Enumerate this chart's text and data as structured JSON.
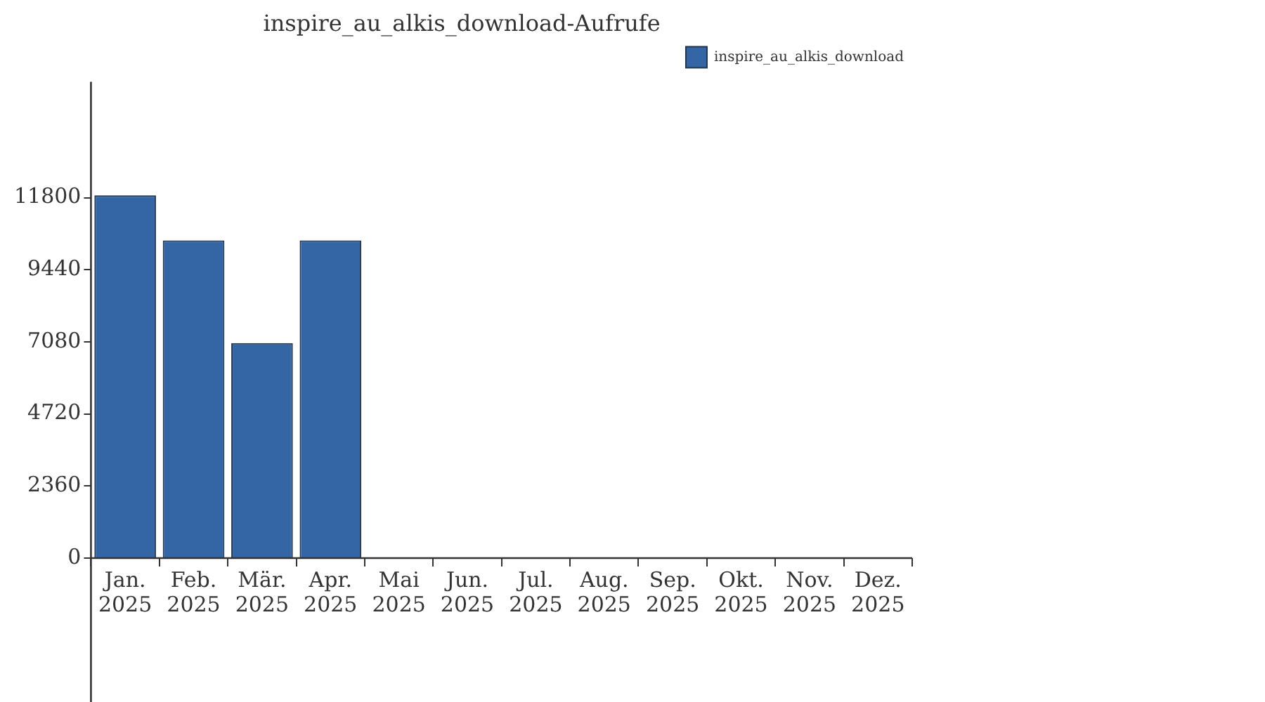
{
  "chart_data": {
    "type": "bar",
    "title": "inspire_au_alkis_download-Aufrufe",
    "categories": [
      "Jan.\n2025",
      "Feb.\n2025",
      "Mär.\n2025",
      "Apr.\n2025",
      "Mai\n2025",
      "Jun.\n2025",
      "Jul.\n2025",
      "Aug.\n2025",
      "Sep.\n2025",
      "Okt.\n2025",
      "Nov.\n2025",
      "Dez.\n2025"
    ],
    "series": [
      {
        "name": "inspire_au_alkis_download",
        "color": "#3465a4",
        "values": [
          11880,
          10400,
          7040,
          10400,
          0,
          0,
          0,
          0,
          0,
          0,
          0,
          0
        ]
      }
    ],
    "ylim": [
      0,
      15600
    ],
    "yticks": [
      0,
      2360,
      4720,
      7080,
      9440,
      11800
    ],
    "grid": false,
    "legend": "top right"
  }
}
